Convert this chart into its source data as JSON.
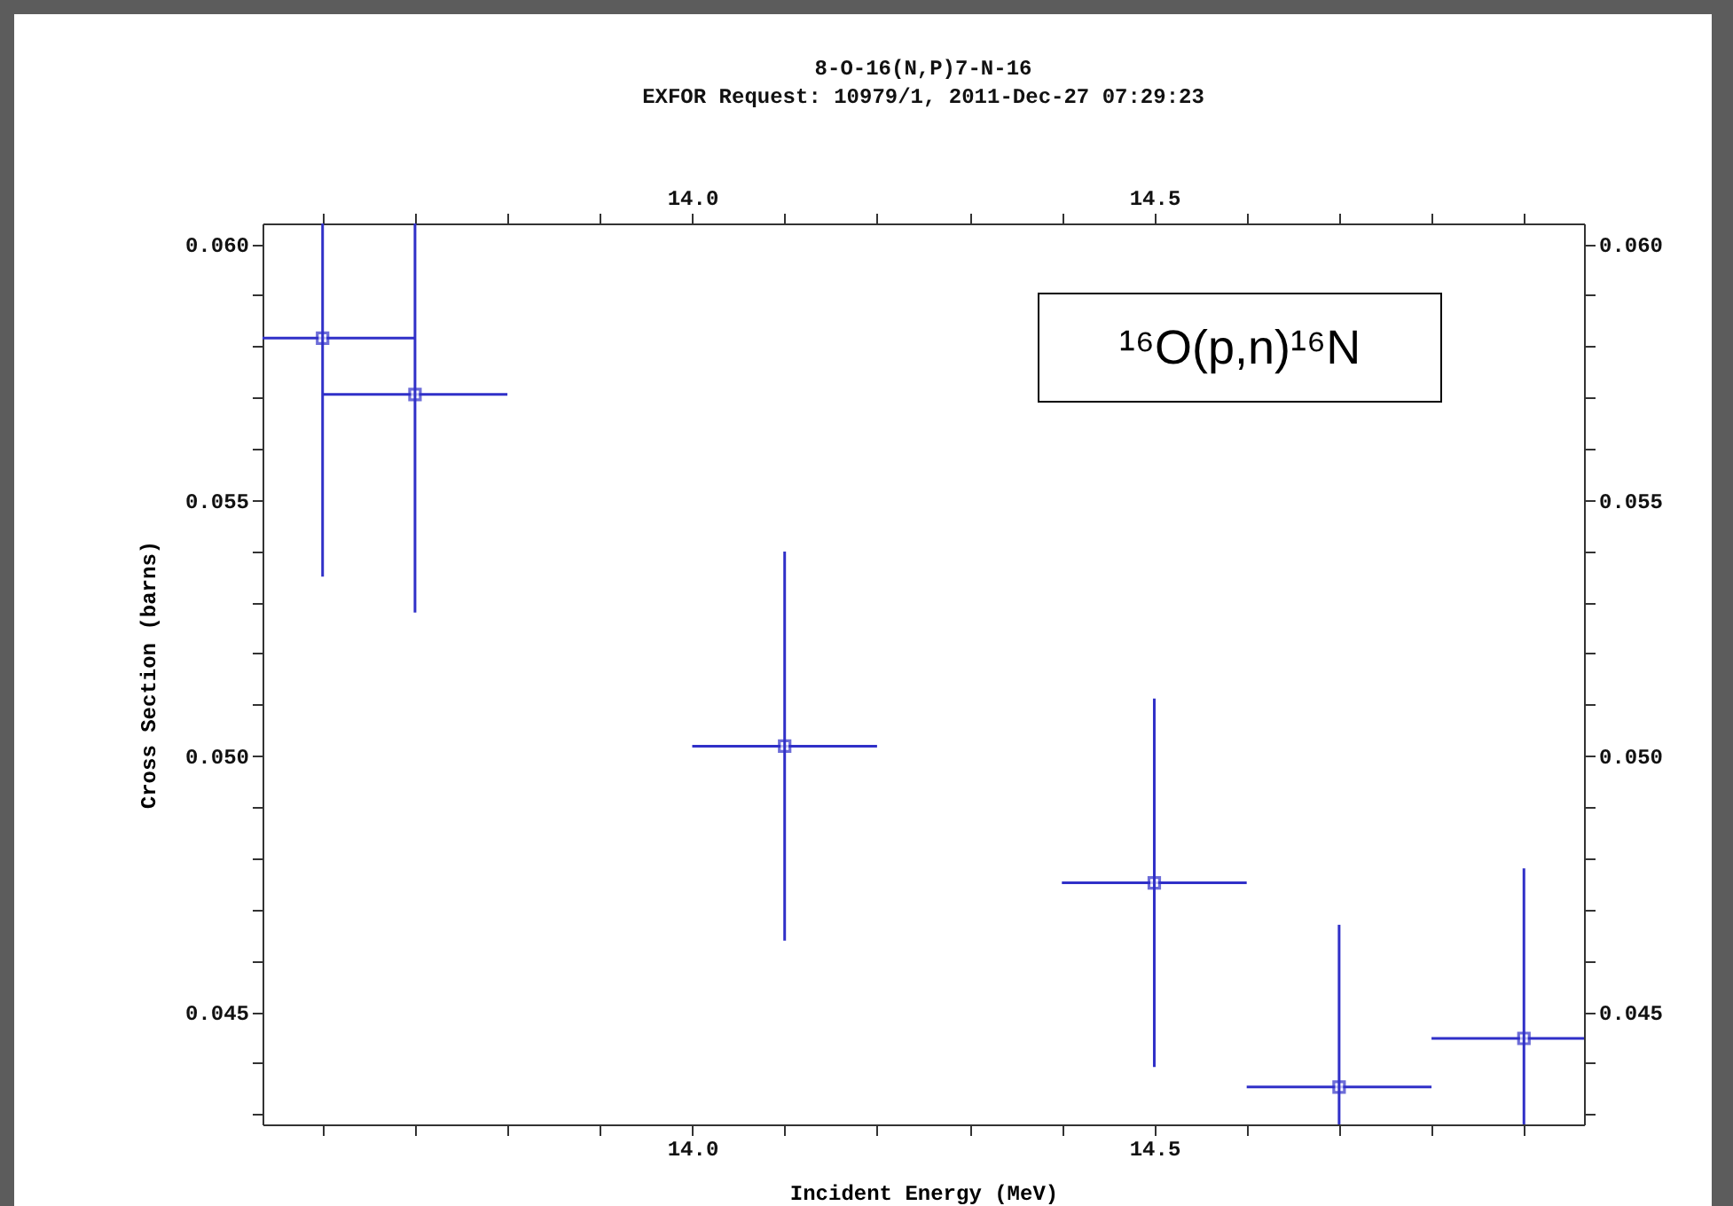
{
  "chart_data": {
    "type": "scatter",
    "title": "8-O-16(N,P)7-N-16",
    "subtitle": "EXFOR Request: 10979/1, 2011-Dec-27 07:29:23",
    "xlabel": "Incident Energy (MeV)",
    "ylabel": "Cross Section (barns)",
    "annotations": [
      "¹⁶O(p,n)¹⁶N"
    ],
    "x": [
      13.6,
      13.7,
      14.1,
      14.5,
      14.7,
      14.9
    ],
    "series": [
      {
        "color": "#3030c8",
        "values": [
          0.05816,
          0.05706,
          0.05019,
          0.04752,
          0.04353,
          0.04448
        ],
        "errors": [
          [
            0.0535,
            0.0604
          ],
          [
            0.0528,
            0.0604
          ],
          0.0038,
          0.0036,
          [
            0.0428,
            0.0467
          ],
          [
            0.0428,
            0.0478
          ]
        ],
        "xerrors": [
          [
            13.535,
            13.7
          ],
          0.1,
          0.1,
          0.1,
          0.1,
          [
            14.8,
            14.965
          ]
        ]
      }
    ],
    "marker": "square",
    "grid": false,
    "xlim": [
      13.535,
      14.965
    ],
    "ylim": [
      0.0428,
      0.0604
    ],
    "xticks": [
      {
        "value": 13.6,
        "label": null
      },
      {
        "value": 13.7,
        "label": null
      },
      {
        "value": 13.8,
        "label": null
      },
      {
        "value": 13.9,
        "label": null
      },
      {
        "value": 14.0,
        "label": "14.0"
      },
      {
        "value": 14.1,
        "label": null
      },
      {
        "value": 14.2,
        "label": null
      },
      {
        "value": 14.3,
        "label": null
      },
      {
        "value": 14.4,
        "label": null
      },
      14.5,
      {
        "value": 14.6,
        "label": null
      },
      {
        "value": 14.7,
        "label": null
      },
      {
        "value": 14.8,
        "label": null
      },
      {
        "value": 14.9,
        "label": null
      }
    ],
    "x2lim": [
      13.535,
      14.965
    ],
    "x2ticks": [
      {
        "value": 13.6,
        "label": null
      },
      {
        "value": 13.7,
        "label": null
      },
      {
        "value": 13.8,
        "label": null
      },
      {
        "value": 13.9,
        "label": null
      },
      {
        "value": 14.0,
        "label": "14.0"
      },
      {
        "value": 14.1,
        "label": null
      },
      {
        "value": 14.2,
        "label": null
      },
      {
        "value": 14.3,
        "label": null
      },
      {
        "value": 14.4,
        "label": null
      },
      14.5,
      {
        "value": 14.6,
        "label": null
      },
      {
        "value": 14.7,
        "label": null
      },
      {
        "value": 14.8,
        "label": null
      },
      {
        "value": 14.9,
        "label": null
      }
    ],
    "yticks": [
      {
        "value": 0.043,
        "label": null
      },
      {
        "value": 0.044,
        "label": null
      },
      {
        "value": 0.045,
        "label": "0.045"
      },
      {
        "value": 0.046,
        "label": null
      },
      {
        "value": 0.047,
        "label": null
      },
      {
        "value": 0.048,
        "label": null
      },
      {
        "value": 0.049,
        "label": null
      },
      {
        "value": 0.05,
        "label": "0.050"
      },
      {
        "value": 0.051,
        "label": null
      },
      {
        "value": 0.052,
        "label": null
      },
      {
        "value": 0.053,
        "label": null
      },
      {
        "value": 0.054,
        "label": null
      },
      {
        "value": 0.055,
        "label": "0.055"
      },
      {
        "value": 0.056,
        "label": null
      },
      {
        "value": 0.057,
        "label": null
      },
      {
        "value": 0.058,
        "label": null
      },
      {
        "value": 0.059,
        "label": null
      },
      {
        "value": 0.06,
        "label": "0.060"
      }
    ],
    "y2lim": [
      0.0428,
      0.0604
    ],
    "y2ticks": [
      {
        "value": 0.043,
        "label": null
      },
      {
        "value": 0.044,
        "label": null
      },
      {
        "value": 0.045,
        "label": "0.045"
      },
      {
        "value": 0.046,
        "label": null
      },
      {
        "value": 0.047,
        "label": null
      },
      {
        "value": 0.048,
        "label": null
      },
      {
        "value": 0.049,
        "label": null
      },
      {
        "value": 0.05,
        "label": "0.050"
      },
      {
        "value": 0.051,
        "label": null
      },
      {
        "value": 0.052,
        "label": null
      },
      {
        "value": 0.053,
        "label": null
      },
      {
        "value": 0.054,
        "label": null
      },
      {
        "value": 0.055,
        "label": "0.055"
      },
      {
        "value": 0.056,
        "label": null
      },
      {
        "value": 0.057,
        "label": null
      },
      {
        "value": 0.058,
        "label": null
      },
      {
        "value": 0.059,
        "label": null
      },
      {
        "value": 0.06,
        "label": "0.060"
      }
    ]
  }
}
